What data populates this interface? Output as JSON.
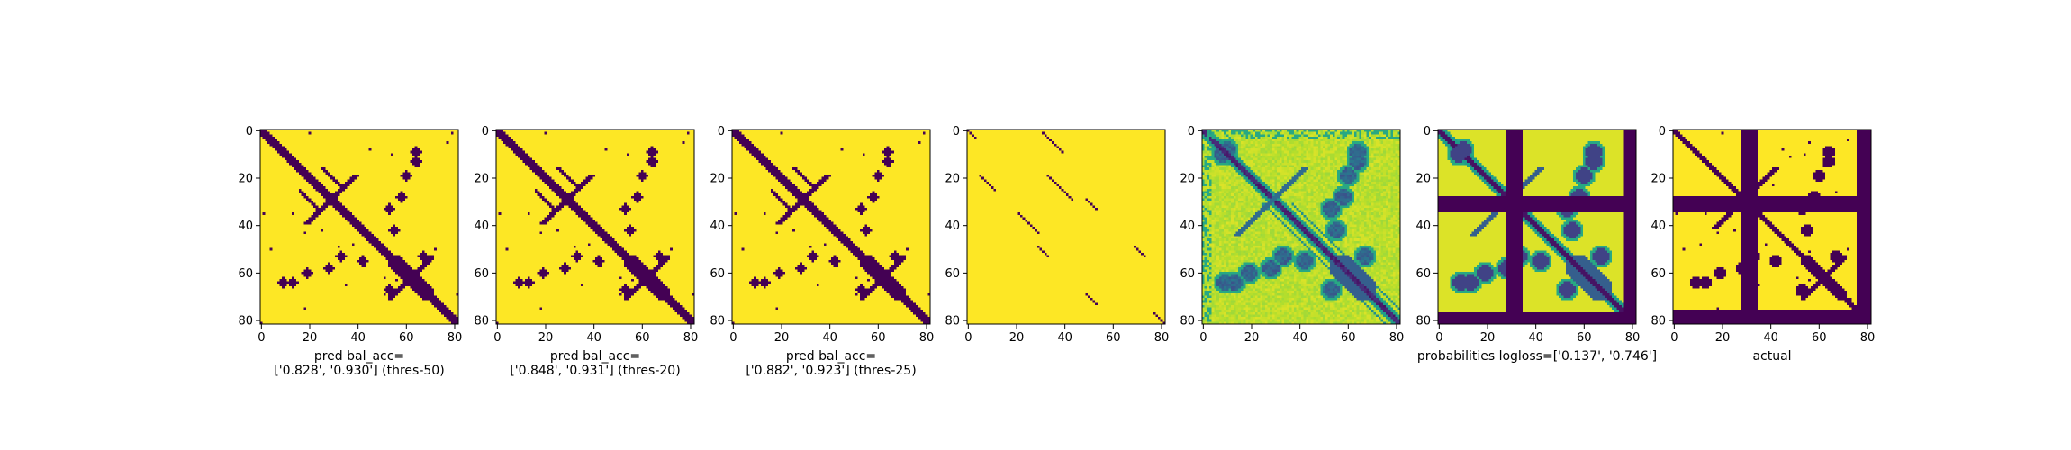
{
  "figure": {
    "background": "#ffffff"
  },
  "colormap": {
    "name": "viridis",
    "low": "#440154",
    "high": "#fde725"
  },
  "chart_data": [
    {
      "type": "heatmap",
      "matrix_size": 82,
      "xlim": [
        0,
        82
      ],
      "ylim": [
        82,
        0
      ],
      "xticks": [
        0,
        20,
        40,
        60,
        80
      ],
      "yticks": [
        0,
        20,
        40,
        60,
        80
      ],
      "xlabel_lines": [
        "pred bal_acc=",
        "['0.828', '0.930'] (thres-50)"
      ],
      "pattern": "pred50"
    },
    {
      "type": "heatmap",
      "matrix_size": 82,
      "xlim": [
        0,
        82
      ],
      "ylim": [
        82,
        0
      ],
      "xticks": [
        0,
        20,
        40,
        60,
        80
      ],
      "yticks": [
        0,
        20,
        40,
        60,
        80
      ],
      "xlabel_lines": [
        "pred bal_acc=",
        "['0.848', '0.931'] (thres-20)"
      ],
      "pattern": "pred20"
    },
    {
      "type": "heatmap",
      "matrix_size": 82,
      "xlim": [
        0,
        82
      ],
      "ylim": [
        82,
        0
      ],
      "xticks": [
        0,
        20,
        40,
        60,
        80
      ],
      "yticks": [
        0,
        20,
        40,
        60,
        80
      ],
      "xlabel_lines": [
        "pred bal_acc=",
        "['0.882', '0.923'] (thres-25)"
      ],
      "pattern": "pred25"
    },
    {
      "type": "heatmap",
      "matrix_size": 82,
      "xlim": [
        0,
        82
      ],
      "ylim": [
        82,
        0
      ],
      "xticks": [
        0,
        20,
        40,
        60,
        80
      ],
      "yticks": [
        0,
        20,
        40,
        60,
        80
      ],
      "xlabel_lines": [],
      "pattern": "sparse"
    },
    {
      "type": "heatmap",
      "matrix_size": 82,
      "xlim": [
        0,
        82
      ],
      "ylim": [
        82,
        0
      ],
      "xticks": [
        0,
        20,
        40,
        60,
        80
      ],
      "yticks": [
        0,
        20,
        40,
        60,
        80
      ],
      "xlabel_lines": [],
      "pattern": "continuous"
    },
    {
      "type": "heatmap",
      "matrix_size": 82,
      "xlim": [
        0,
        82
      ],
      "ylim": [
        82,
        0
      ],
      "xticks": [
        0,
        20,
        40,
        60,
        80
      ],
      "yticks": [
        0,
        20,
        40,
        60,
        80
      ],
      "xlabel_lines": [
        "probabilities logloss=['0.137', '0.746']"
      ],
      "pattern": "probs"
    },
    {
      "type": "heatmap",
      "matrix_size": 82,
      "xlim": [
        0,
        82
      ],
      "ylim": [
        82,
        0
      ],
      "xticks": [
        0,
        20,
        40,
        60,
        80
      ],
      "yticks": [
        0,
        20,
        40,
        60,
        80
      ],
      "xlabel_lines": [
        "actual"
      ],
      "pattern": "actual"
    }
  ]
}
